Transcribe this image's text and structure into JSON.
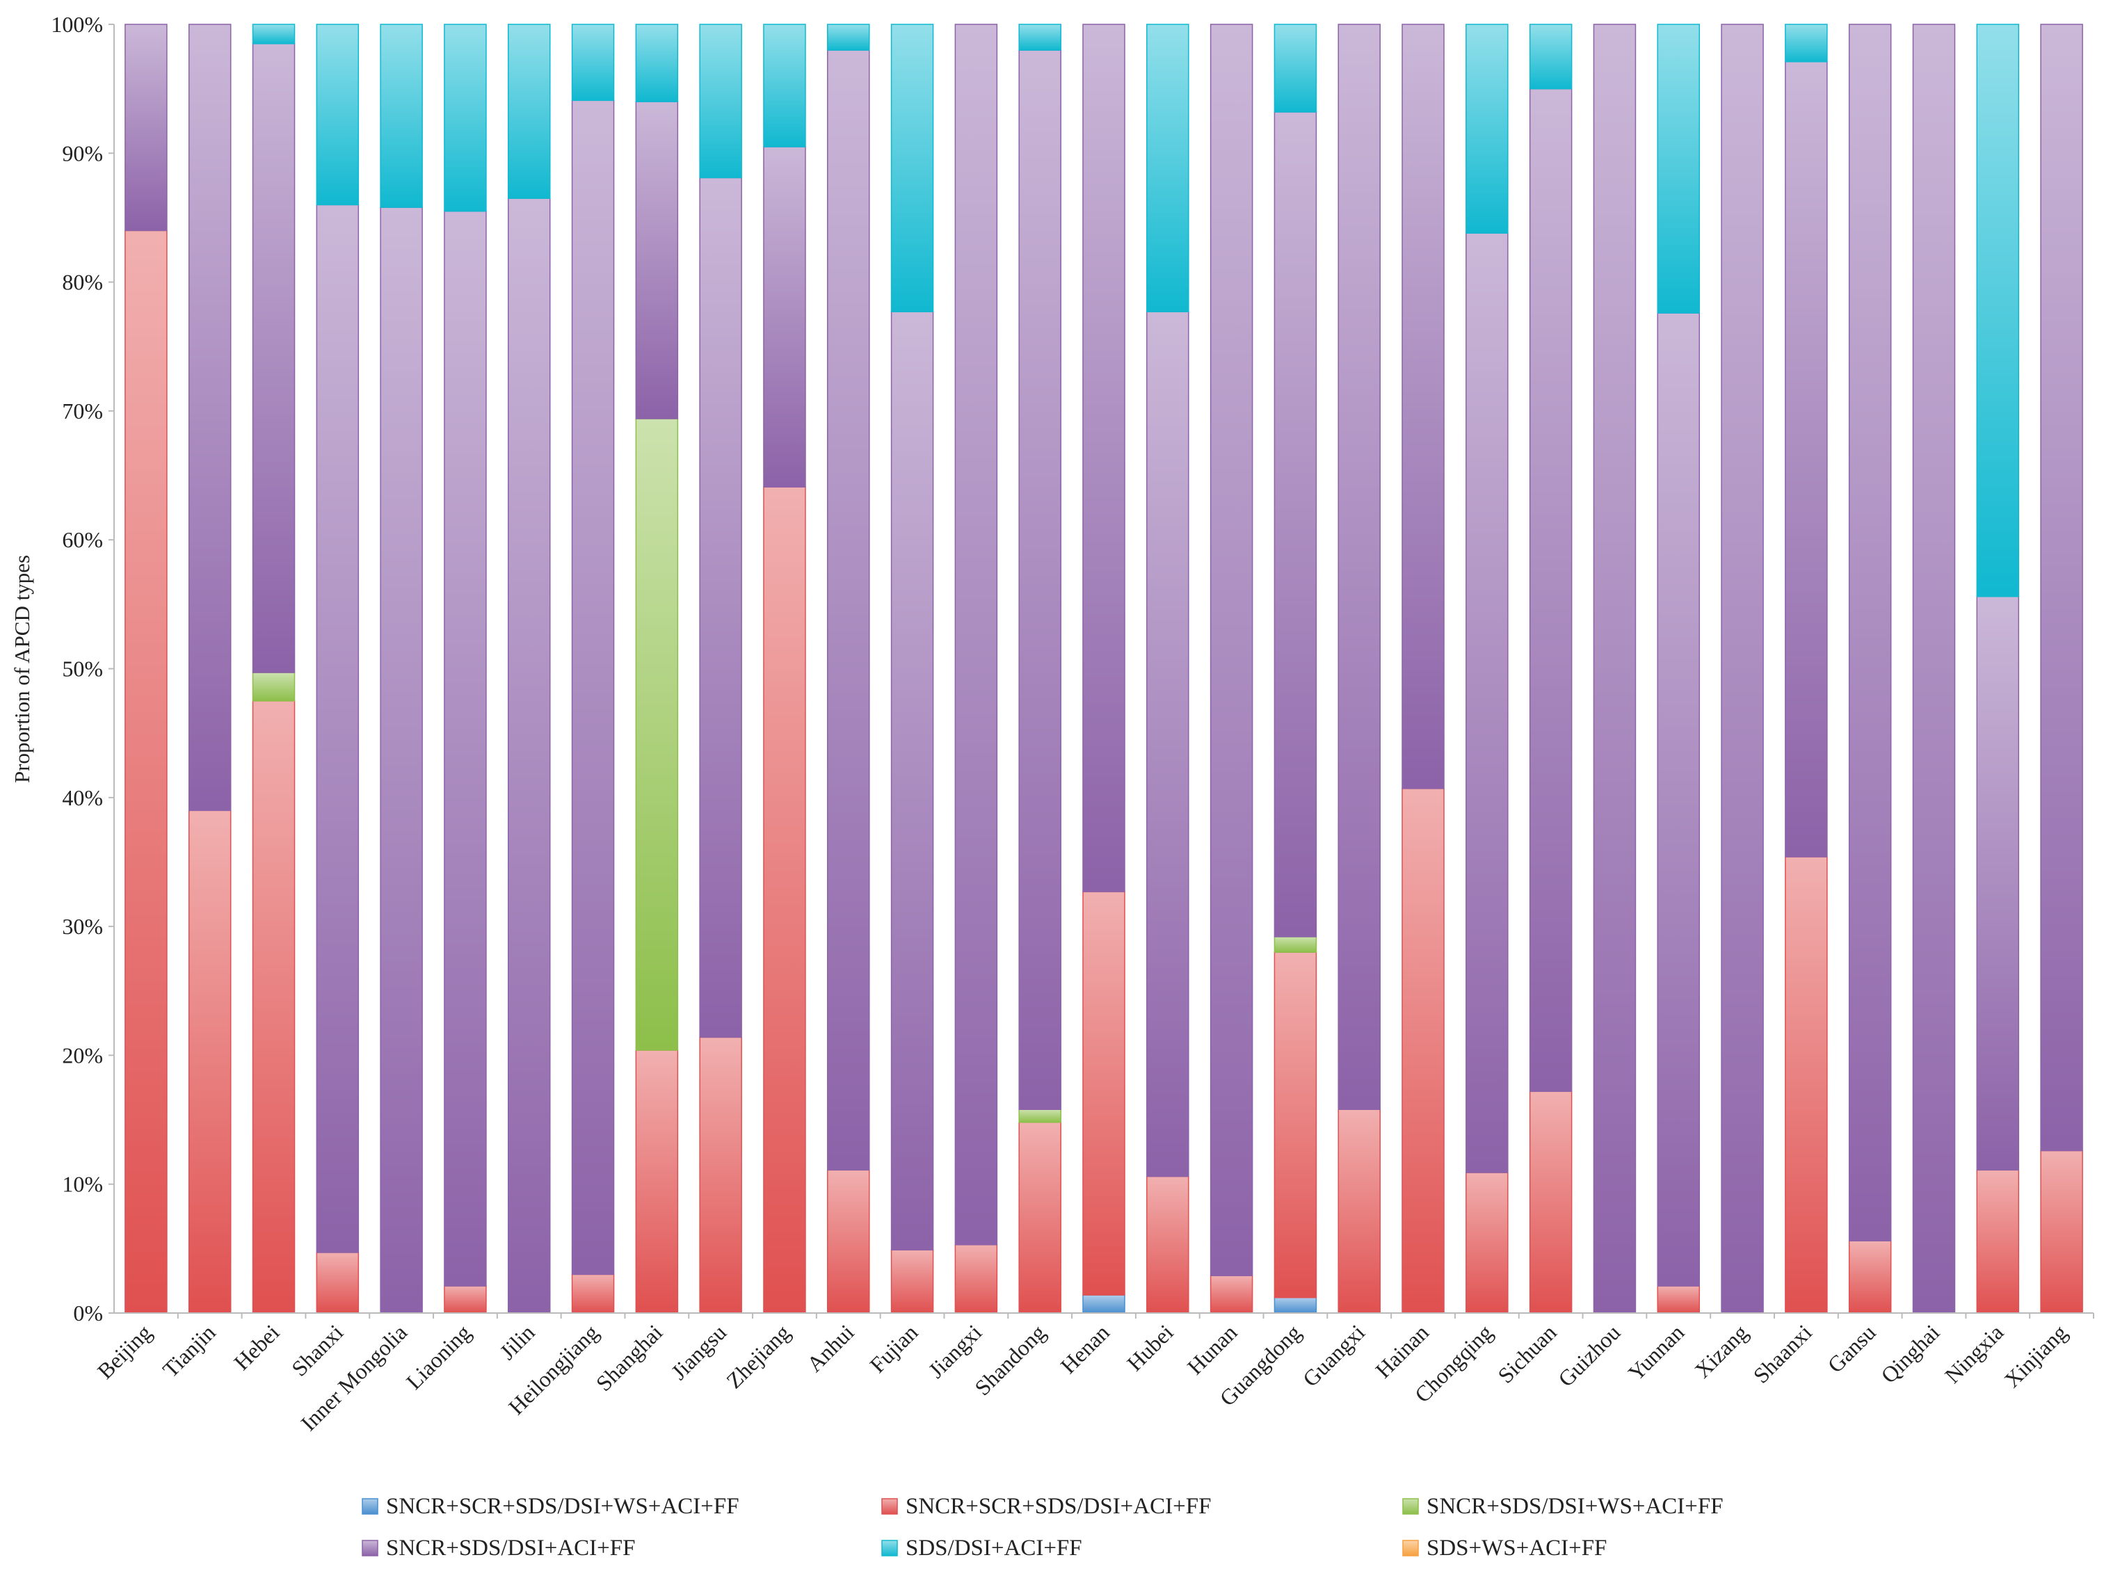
{
  "chart_data": {
    "type": "bar",
    "stacked": true,
    "title": "",
    "xlabel": "",
    "ylabel": "Proportion of APCD types",
    "ylim": [
      0,
      100
    ],
    "yticks": [
      "0%",
      "10%",
      "20%",
      "30%",
      "40%",
      "50%",
      "60%",
      "70%",
      "80%",
      "90%",
      "100%"
    ],
    "grid": false,
    "legend_position": "bottom",
    "categories": [
      "Beijing",
      "Tianjin",
      "Hebei",
      "Shanxi",
      "Inner Mongolia",
      "Liaoning",
      "Jilin",
      "Heilongjiang",
      "Shanghai",
      "Jiangsu",
      "Zhejiang",
      "Anhui",
      "Fujian",
      "Jiangxi",
      "Shandong",
      "Henan",
      "Hubei",
      "Hunan",
      "Guangdong",
      "Guangxi",
      "Hainan",
      "Chongqing",
      "Sichuan",
      "Guizhou",
      "Yunnan",
      "Xizang",
      "Shaanxi",
      "Gansu",
      "Qinghai",
      "Ningxia",
      "Xinjiang"
    ],
    "series": [
      {
        "name": "SNCR+SCR+SDS/DSI+WS+ACI+FF",
        "color": "#4a8fd0",
        "values": [
          0,
          0,
          0,
          0,
          0,
          0,
          0,
          0,
          0,
          0,
          0,
          0,
          0,
          0,
          0,
          1.4,
          0,
          0,
          1.2,
          0,
          0,
          0,
          0,
          0,
          0,
          0,
          0,
          0,
          0,
          0,
          0
        ]
      },
      {
        "name": "SNCR+SCR+SDS/DSI+ACI+FF",
        "color": "#e05050",
        "values": [
          84,
          39,
          47.5,
          4.7,
          0,
          2.1,
          0,
          3,
          20.4,
          21.4,
          64.1,
          11.1,
          4.9,
          5.3,
          14.8,
          31.3,
          10.6,
          2.9,
          26.8,
          15.8,
          40.7,
          10.9,
          17.2,
          0,
          2.1,
          0,
          35.4,
          5.6,
          0,
          11.1,
          12.6
        ]
      },
      {
        "name": "SNCR+SDS/DSI+WS+ACI+FF",
        "color": "#8dbf4a",
        "values": [
          0,
          0,
          2.2,
          0,
          0,
          0,
          0,
          0,
          49,
          0,
          0,
          0,
          0,
          0,
          1,
          0,
          0,
          0,
          1.2,
          0,
          0,
          0,
          0,
          0,
          0,
          0,
          0,
          0,
          0,
          0,
          0
        ]
      },
      {
        "name": "SNCR+SDS/DSI+ACI+FF",
        "color": "#8c62a8",
        "values": [
          16,
          61,
          48.8,
          81.3,
          85.8,
          83.4,
          86.5,
          91.1,
          24.6,
          66.7,
          26.4,
          86.9,
          72.8,
          94.7,
          82.2,
          67.3,
          67.1,
          97.1,
          64,
          84.2,
          59.3,
          72.9,
          77.8,
          100,
          75.5,
          100,
          61.7,
          94.4,
          100,
          44.5,
          87.4
        ]
      },
      {
        "name": "SDS/DSI+ACI+FF",
        "color": "#10b8d0",
        "values": [
          0,
          0,
          1.5,
          14,
          14.2,
          14.5,
          13.5,
          5.9,
          6,
          11.9,
          9.5,
          2,
          22.3,
          0,
          2,
          0,
          22.3,
          0,
          6.8,
          0,
          0,
          16.2,
          5,
          0,
          22.4,
          0,
          2.9,
          0,
          0,
          44.4,
          0
        ]
      },
      {
        "name": "SDS+WS+ACI+FF",
        "color": "#f7a040",
        "values": [
          0,
          0,
          0,
          0,
          0,
          0,
          0,
          0,
          0,
          0,
          0,
          0,
          0,
          0,
          0,
          0,
          0,
          0,
          0,
          0,
          0,
          0,
          0,
          0,
          0,
          0,
          0,
          0,
          0,
          0,
          0
        ]
      }
    ]
  }
}
